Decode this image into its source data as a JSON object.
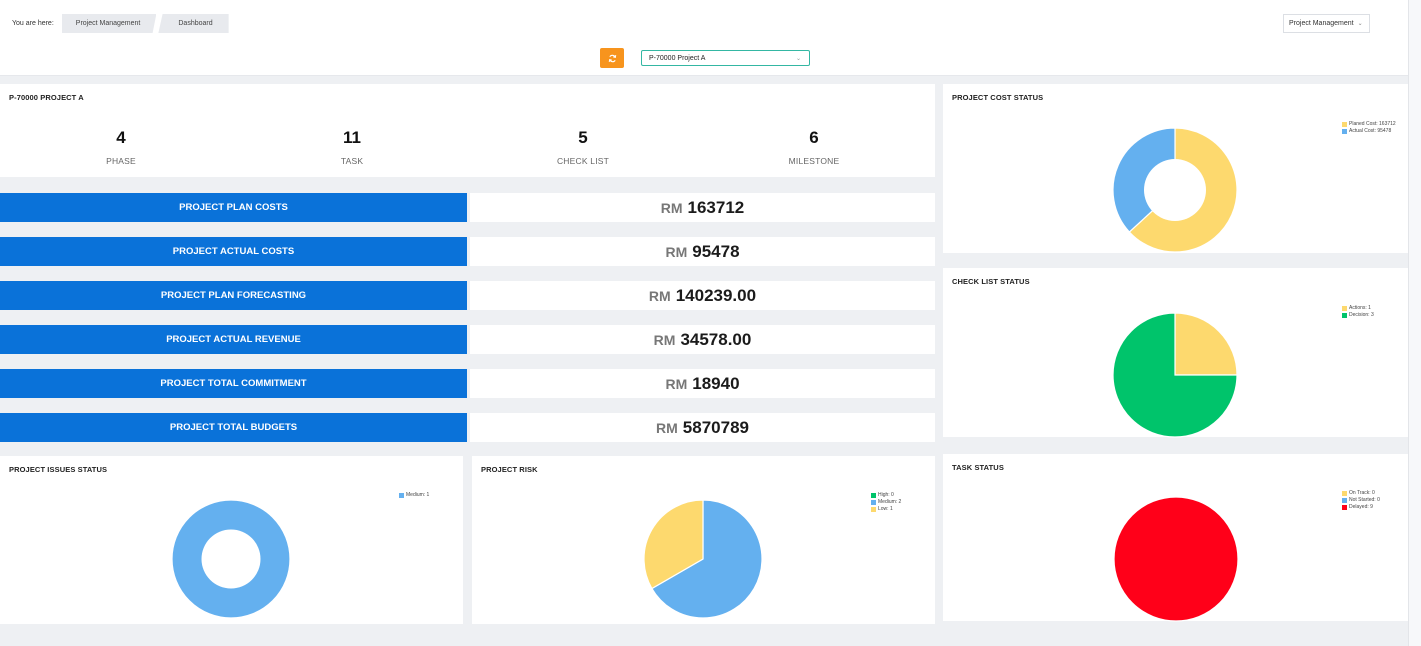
{
  "header": {
    "breadcrumb_label": "You are here:",
    "breadcrumb_items": [
      "Project Management",
      "Dashboard"
    ],
    "module_dropdown": "Project Management",
    "project_select": "P-70000 Project A"
  },
  "overview": {
    "title": "P-70000 PROJECT A",
    "stats": [
      {
        "value": "4",
        "label": "PHASE"
      },
      {
        "value": "11",
        "label": "TASK"
      },
      {
        "value": "5",
        "label": "CHECK LIST"
      },
      {
        "value": "6",
        "label": "MILESTONE"
      }
    ]
  },
  "costs": [
    {
      "label": "PROJECT PLAN COSTS",
      "currency": "RM",
      "amount": "163712"
    },
    {
      "label": "PROJECT ACTUAL COSTS",
      "currency": "RM",
      "amount": "95478"
    },
    {
      "label": "PROJECT PLAN FORECASTING",
      "currency": "RM",
      "amount": "140239.00"
    },
    {
      "label": "PROJECT ACTUAL REVENUE",
      "currency": "RM",
      "amount": "34578.00"
    },
    {
      "label": "PROJECT TOTAL COMMITMENT",
      "currency": "RM",
      "amount": "18940"
    },
    {
      "label": "PROJECT TOTAL BUDGETS",
      "currency": "RM",
      "amount": "5870789"
    }
  ],
  "colors": {
    "accent_blue": "#0a72d9",
    "refresh_orange": "#f7941d",
    "yellow": "#fdd96e",
    "light_blue": "#64b0ef",
    "green": "#00c46b",
    "red": "#ff0019"
  },
  "chart_data": [
    {
      "id": "cost",
      "type": "pie",
      "donut": true,
      "title": "PROJECT COST STATUS",
      "legend_position": "top-right",
      "slices": [
        {
          "name": "Planed Cost: 163712",
          "value": 163712,
          "color": "#fdd96e"
        },
        {
          "name": "Actual Cost: 95478",
          "value": 95478,
          "color": "#64b0ef"
        }
      ]
    },
    {
      "id": "checklist",
      "type": "pie",
      "donut": false,
      "title": "CHECK LIST STATUS",
      "legend_position": "top-right",
      "slices": [
        {
          "name": "Actions: 1",
          "value": 1,
          "color": "#fdd96e"
        },
        {
          "name": "Decision: 3",
          "value": 3,
          "color": "#00c46b"
        }
      ]
    },
    {
      "id": "issues",
      "type": "pie",
      "donut": true,
      "title": "PROJECT ISSUES STATUS",
      "legend_position": "top-right",
      "slices": [
        {
          "name": "Medium: 1",
          "value": 1,
          "color": "#64b0ef"
        }
      ]
    },
    {
      "id": "risk",
      "type": "pie",
      "donut": false,
      "title": "PROJECT RISK",
      "legend_position": "top-right",
      "slices": [
        {
          "name": "High: 0",
          "value": 0,
          "color": "#00c46b"
        },
        {
          "name": "Medium: 2",
          "value": 2,
          "color": "#64b0ef"
        },
        {
          "name": "Low: 1",
          "value": 1,
          "color": "#fdd96e"
        }
      ]
    },
    {
      "id": "task",
      "type": "pie",
      "donut": false,
      "title": "TASK STATUS",
      "legend_position": "top-right",
      "slices": [
        {
          "name": "On Track: 0",
          "value": 0,
          "color": "#fdd96e"
        },
        {
          "name": "Not Started: 0",
          "value": 0,
          "color": "#64b0ef"
        },
        {
          "name": "Delayed: 9",
          "value": 9,
          "color": "#ff0019"
        }
      ]
    }
  ]
}
